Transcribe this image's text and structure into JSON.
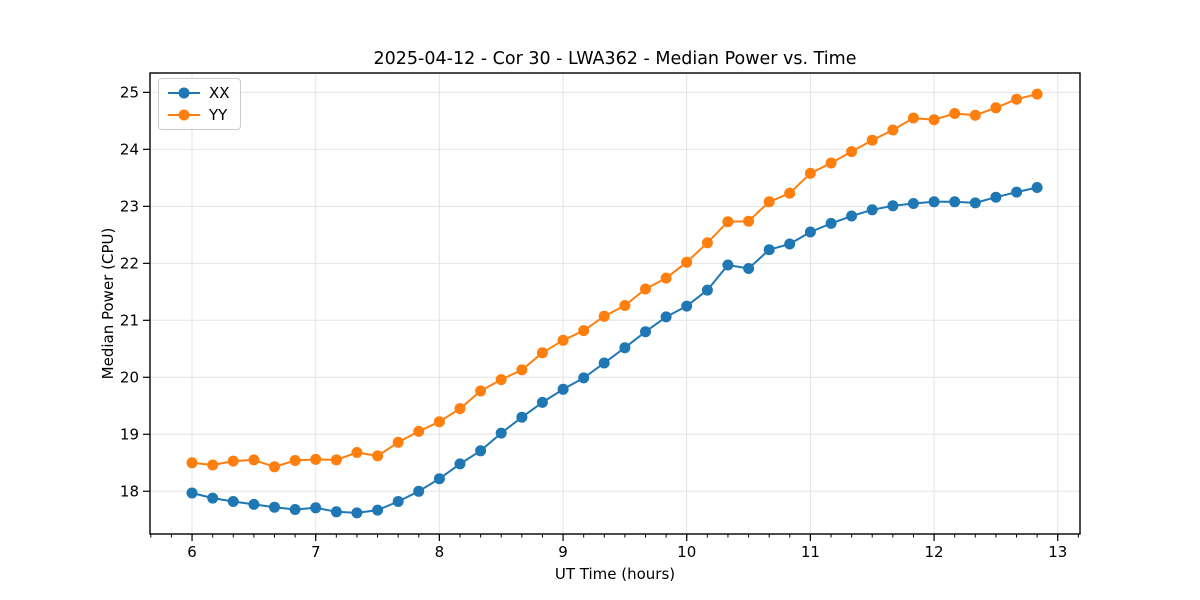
{
  "figure": {
    "title": "2025-04-12 - Cor 30 - LWA362 - Median Power vs. Time",
    "xlabel": "UT Time (hours)",
    "ylabel": "Median Power (CPU)"
  },
  "legend": {
    "position": "upper-left",
    "items": [
      {
        "label": "XX",
        "color": "#1f77b4"
      },
      {
        "label": "YY",
        "color": "#ff7f0e"
      }
    ]
  },
  "colors": {
    "series_xx": "#1f77b4",
    "series_yy": "#ff7f0e",
    "grid": "#e4e4e4",
    "spine": "#000000",
    "background": "#ffffff"
  },
  "chart_data": {
    "type": "line",
    "title": "2025-04-12 - Cor 30 - LWA362 - Median Power vs. Time",
    "xlabel": "UT Time (hours)",
    "ylabel": "Median Power (CPU)",
    "xlim": [
      5.66,
      13.18
    ],
    "ylim": [
      17.25,
      25.34
    ],
    "x_ticks": [
      6,
      7,
      8,
      9,
      10,
      11,
      12,
      13
    ],
    "y_ticks": [
      18,
      19,
      20,
      21,
      22,
      23,
      24,
      25
    ],
    "x_minor_tick_step": 0.1666667,
    "grid": true,
    "legend_position": "upper-left",
    "marker": "circle",
    "x": [
      6.0,
      6.167,
      6.333,
      6.5,
      6.667,
      6.833,
      7.0,
      7.167,
      7.333,
      7.5,
      7.667,
      7.833,
      8.0,
      8.167,
      8.333,
      8.5,
      8.667,
      8.833,
      9.0,
      9.167,
      9.333,
      9.5,
      9.667,
      9.833,
      10.0,
      10.167,
      10.333,
      10.5,
      10.667,
      10.833,
      11.0,
      11.167,
      11.333,
      11.5,
      11.667,
      11.833,
      12.0,
      12.167,
      12.333,
      12.5,
      12.667,
      12.833
    ],
    "series": [
      {
        "name": "XX",
        "color": "#1f77b4",
        "values": [
          17.97,
          17.88,
          17.82,
          17.77,
          17.72,
          17.68,
          17.71,
          17.64,
          17.62,
          17.67,
          17.82,
          18.0,
          18.22,
          18.48,
          18.71,
          19.02,
          19.3,
          19.56,
          19.79,
          19.99,
          20.25,
          20.52,
          20.8,
          21.06,
          21.25,
          21.53,
          21.97,
          21.91,
          22.24,
          22.34,
          22.55,
          22.7,
          22.83,
          22.94,
          23.01,
          23.05,
          23.08,
          23.08,
          23.06,
          23.16,
          23.25,
          23.33
        ]
      },
      {
        "name": "YY",
        "color": "#ff7f0e",
        "values": [
          18.5,
          18.46,
          18.53,
          18.55,
          18.43,
          18.54,
          18.56,
          18.55,
          18.68,
          18.62,
          18.86,
          19.05,
          19.22,
          19.45,
          19.76,
          19.96,
          20.13,
          20.43,
          20.65,
          20.82,
          21.07,
          21.26,
          21.55,
          21.74,
          22.02,
          22.36,
          22.73,
          22.74,
          23.08,
          23.23,
          23.58,
          23.76,
          23.96,
          24.16,
          24.34,
          24.55,
          24.52,
          24.63,
          24.6,
          24.73,
          24.88,
          24.97
        ]
      }
    ]
  }
}
